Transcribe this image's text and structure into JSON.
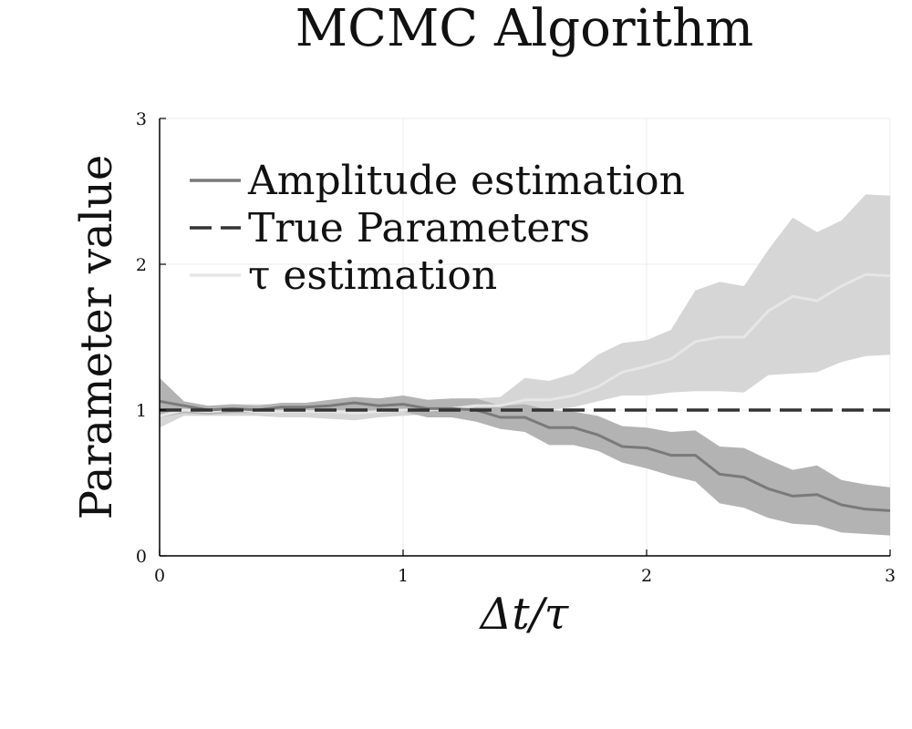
{
  "chart_data": {
    "type": "line",
    "title": "MCMC Algorithm",
    "xlabel": "Δt/τ",
    "ylabel": "Parameter value",
    "xlim": [
      0,
      3
    ],
    "ylim": [
      0,
      3
    ],
    "xticks": [
      0,
      1,
      2,
      3
    ],
    "yticks": [
      0,
      1,
      2,
      3
    ],
    "grid": true,
    "legend_position": "top-left",
    "colors": {
      "amplitude_line": "#7a7a7a",
      "amplitude_band": "#b3b3b3",
      "tau_line": "#e6e6e6",
      "tau_band": "#d6d6d6",
      "true_line": "#333333",
      "grid": "#ececec",
      "axis": "#000000"
    },
    "series": [
      {
        "name": "Amplitude estimation",
        "style": "solid",
        "x": [
          0,
          0.1,
          0.2,
          0.3,
          0.4,
          0.5,
          0.6,
          0.7,
          0.8,
          0.9,
          1.0,
          1.1,
          1.2,
          1.3,
          1.4,
          1.5,
          1.6,
          1.7,
          1.8,
          1.9,
          2.0,
          2.1,
          2.2,
          2.3,
          2.4,
          2.5,
          2.6,
          2.7,
          2.8,
          2.9,
          3.0
        ],
        "y": [
          1.06,
          1.03,
          1.0,
          1.01,
          1.0,
          1.02,
          1.02,
          1.03,
          1.05,
          1.03,
          1.04,
          1.01,
          1.01,
          1.0,
          0.95,
          0.95,
          0.88,
          0.88,
          0.83,
          0.75,
          0.74,
          0.69,
          0.69,
          0.56,
          0.54,
          0.46,
          0.41,
          0.42,
          0.35,
          0.32,
          0.31
        ],
        "lower": [
          0.95,
          0.98,
          0.97,
          0.98,
          0.98,
          0.99,
          0.99,
          1.0,
          1.0,
          0.99,
          0.99,
          0.95,
          0.95,
          0.92,
          0.87,
          0.85,
          0.76,
          0.76,
          0.72,
          0.64,
          0.6,
          0.55,
          0.51,
          0.36,
          0.33,
          0.26,
          0.22,
          0.21,
          0.16,
          0.15,
          0.14
        ],
        "upper": [
          1.22,
          1.06,
          1.03,
          1.04,
          1.03,
          1.05,
          1.05,
          1.07,
          1.09,
          1.08,
          1.1,
          1.07,
          1.08,
          1.08,
          1.03,
          1.04,
          1.0,
          0.99,
          0.96,
          0.89,
          0.88,
          0.85,
          0.86,
          0.75,
          0.74,
          0.66,
          0.59,
          0.62,
          0.52,
          0.49,
          0.47
        ]
      },
      {
        "name": "True Parameters",
        "style": "dashed",
        "x": [
          0,
          3
        ],
        "y": [
          1.0,
          1.0
        ]
      },
      {
        "name": "τ estimation",
        "style": "solid",
        "x": [
          0,
          0.1,
          0.2,
          0.3,
          0.4,
          0.5,
          0.6,
          0.7,
          0.8,
          0.9,
          1.0,
          1.1,
          1.2,
          1.3,
          1.4,
          1.5,
          1.6,
          1.7,
          1.8,
          1.9,
          2.0,
          2.1,
          2.2,
          2.3,
          2.4,
          2.5,
          2.6,
          2.7,
          2.8,
          2.9,
          3.0
        ],
        "y": [
          0.96,
          1.0,
          0.99,
          1.0,
          0.99,
          0.99,
          0.99,
          0.99,
          0.98,
          0.99,
          1.0,
          1.0,
          1.01,
          1.03,
          1.03,
          1.07,
          1.07,
          1.1,
          1.16,
          1.26,
          1.3,
          1.35,
          1.47,
          1.5,
          1.5,
          1.68,
          1.78,
          1.75,
          1.85,
          1.93,
          1.92
        ],
        "lower": [
          0.88,
          0.96,
          0.96,
          0.96,
          0.96,
          0.95,
          0.95,
          0.94,
          0.93,
          0.95,
          0.96,
          0.97,
          0.99,
          1.0,
          0.99,
          1.02,
          1.0,
          1.02,
          1.06,
          1.1,
          1.1,
          1.12,
          1.13,
          1.13,
          1.12,
          1.24,
          1.25,
          1.26,
          1.33,
          1.37,
          1.38
        ],
        "upper": [
          1.05,
          1.05,
          1.03,
          1.04,
          1.04,
          1.04,
          1.04,
          1.04,
          1.04,
          1.04,
          1.05,
          1.05,
          1.07,
          1.08,
          1.09,
          1.22,
          1.2,
          1.25,
          1.38,
          1.46,
          1.48,
          1.55,
          1.82,
          1.88,
          1.85,
          2.1,
          2.32,
          2.22,
          2.3,
          2.48,
          2.47
        ]
      }
    ]
  }
}
